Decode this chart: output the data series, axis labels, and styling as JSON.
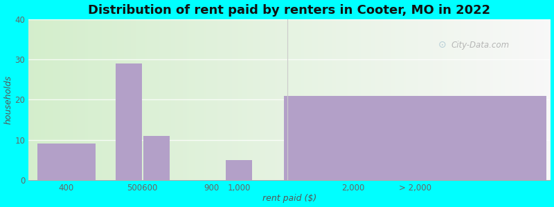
{
  "title": "Distribution of rent paid by renters in Cooter, MO in 2022",
  "xlabel": "rent paid ($)",
  "ylabel": "households",
  "bar_color": "#b3a0c8",
  "background_outer": "#00FFFF",
  "ylim": [
    0,
    40
  ],
  "yticks": [
    0,
    10,
    20,
    30,
    40
  ],
  "title_fontsize": 13,
  "axis_label_fontsize": 9,
  "tick_fontsize": 8.5,
  "watermark": "City-Data.com",
  "bar_positions": [
    0.45,
    1.35,
    1.75,
    2.55,
    2.95,
    5.5
  ],
  "bar_widths": [
    0.85,
    0.38,
    0.38,
    0.38,
    0.38,
    3.8
  ],
  "bar_values": [
    9,
    29,
    11,
    0,
    5,
    21
  ],
  "tick_positions": [
    0.45,
    1.55,
    2.55,
    2.95,
    4.6,
    5.5
  ],
  "tick_labels": [
    "400",
    "500600",
    "900",
    "1,000",
    "2,000",
    "> 2,000"
  ],
  "xlim": [
    -0.1,
    7.45
  ],
  "separator_x": 3.65
}
